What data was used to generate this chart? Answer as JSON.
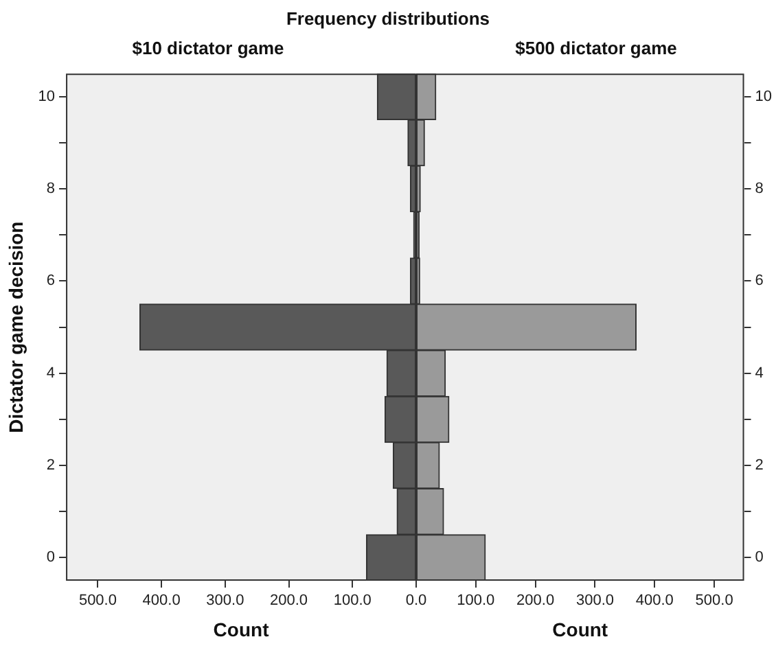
{
  "chart_data": [
    {
      "type": "bar",
      "orientation": "horizontal",
      "title": "Frequency distributions",
      "subtitle": "$10 dictator game",
      "ylabel": "Dictator game decision",
      "xlabel": "Count",
      "categories": [
        "10",
        null,
        "8",
        null,
        "6",
        null,
        "4",
        null,
        "2",
        null,
        "0"
      ],
      "values": [
        61,
        13,
        9,
        4,
        9,
        434,
        46,
        49,
        36,
        30,
        78
      ],
      "color": "#595959",
      "xlim": [
        550,
        0
      ],
      "xticks": [
        {
          "value": 500,
          "label": "500.0"
        },
        {
          "value": 400,
          "label": "400.0"
        },
        {
          "value": 300,
          "label": "300.0"
        },
        {
          "value": 200,
          "label": "200.0"
        },
        {
          "value": 100,
          "label": "100.0"
        },
        {
          "value": 0,
          "label": "0.0"
        }
      ]
    },
    {
      "type": "bar",
      "orientation": "horizontal",
      "subtitle": "$500 dictator game",
      "xlabel": "Count",
      "categories": [
        "10",
        null,
        "8",
        null,
        "6",
        null,
        "4",
        null,
        "2",
        null,
        "0"
      ],
      "values": [
        33,
        14,
        7,
        5,
        6,
        369,
        49,
        55,
        39,
        46,
        116
      ],
      "color": "#9a9a9a",
      "xlim": [
        0,
        550
      ],
      "xticks": [
        {
          "value": 100,
          "label": "100.0"
        },
        {
          "value": 200,
          "label": "200.0"
        },
        {
          "value": 300,
          "label": "300.0"
        },
        {
          "value": 400,
          "label": "400.0"
        },
        {
          "value": 500,
          "label": "500.0"
        }
      ]
    }
  ]
}
